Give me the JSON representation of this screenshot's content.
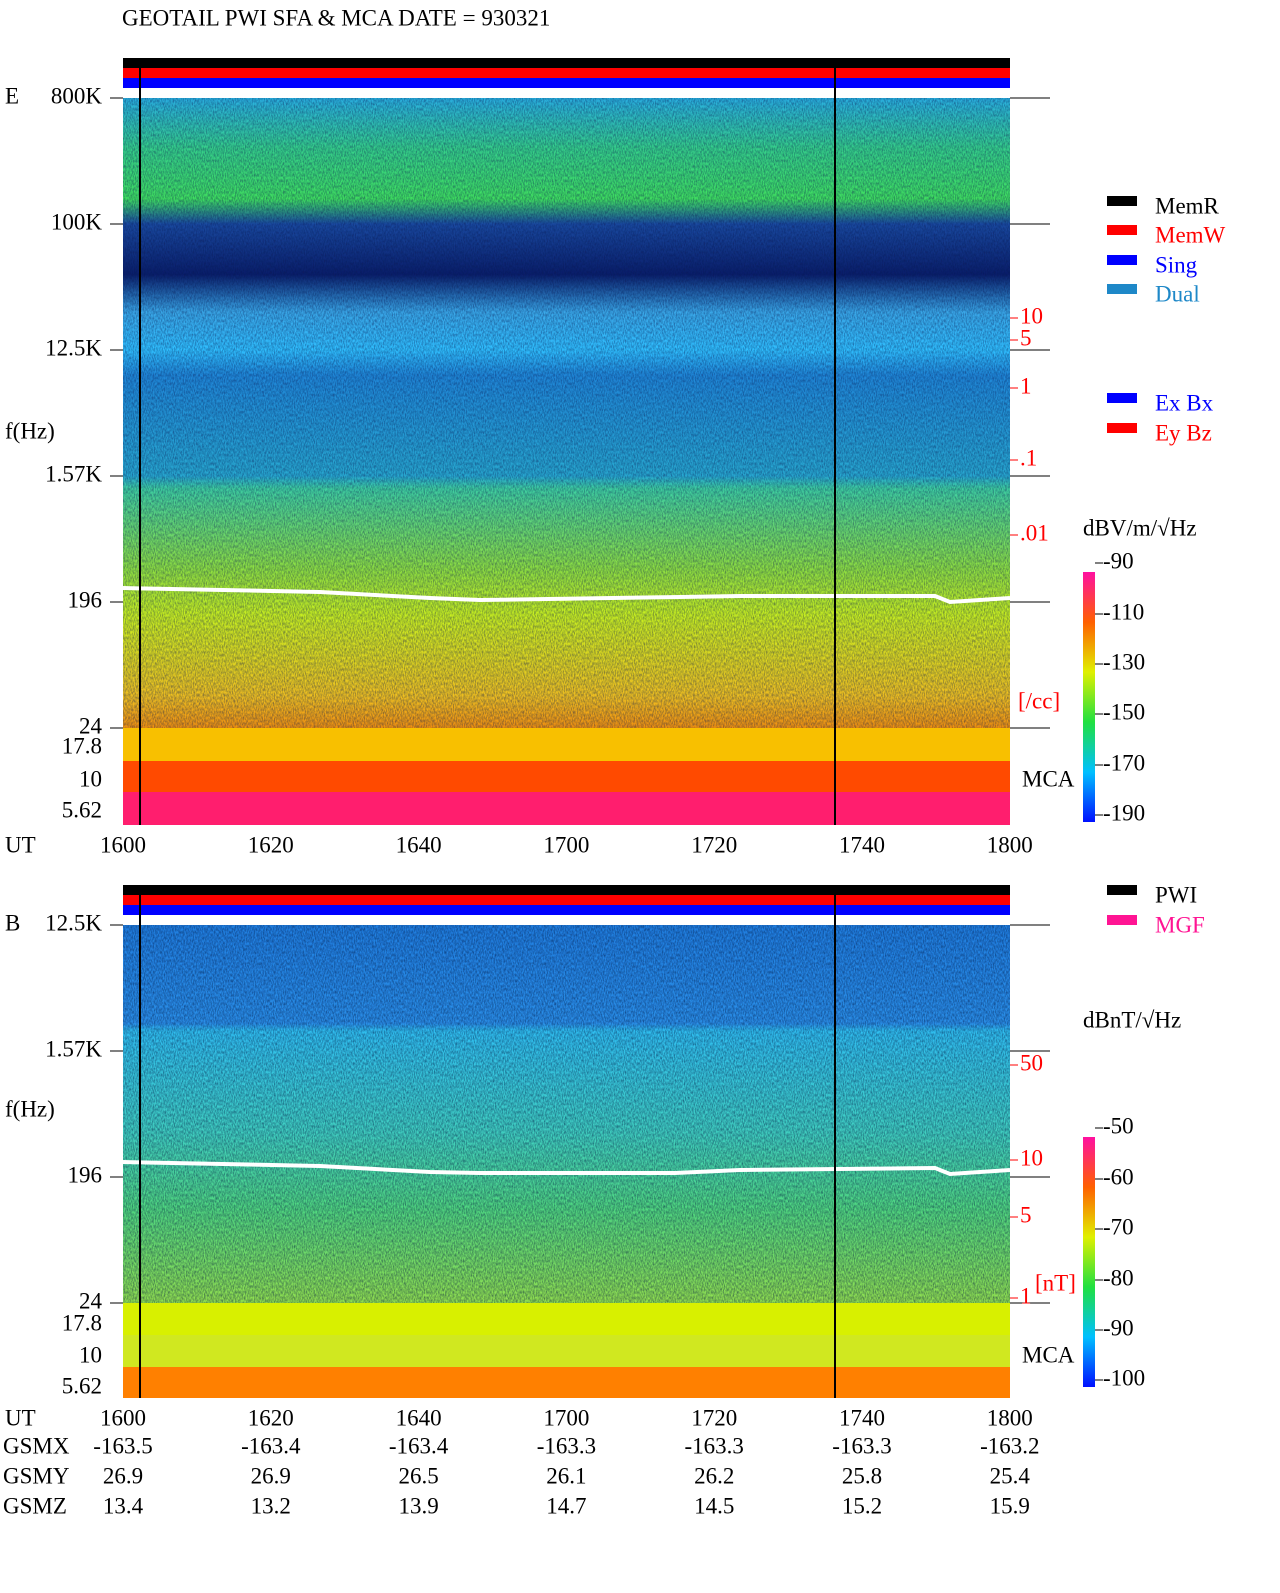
{
  "title": "GEOTAIL  PWI SFA & MCA   DATE = 930321",
  "panels": [
    {
      "component": "E",
      "ylabel": "f(Hz)",
      "yticks": [
        "800K",
        "100K",
        "12.5K",
        "1.57K",
        "196",
        "24",
        "17.8",
        "10",
        "5.62"
      ],
      "xlabel": "UT",
      "xticks": [
        "1600",
        "1620",
        "1640",
        "1700",
        "1720",
        "1740",
        "1800"
      ],
      "density_ticks": [
        "10",
        "5",
        "1",
        ".1",
        ".01"
      ],
      "density_unit": "[/cc]",
      "mca": "MCA",
      "colorbar_unit": "dBV/m/√Hz",
      "colorbar_ticks": [
        "-90",
        "-110",
        "-130",
        "-150",
        "-170",
        "-190"
      ],
      "legend": [
        {
          "label": "MemR",
          "color": "#000000"
        },
        {
          "label": "MemW",
          "color": "#ff0000"
        },
        {
          "label": "Sing",
          "color": "#0000ff"
        },
        {
          "label": "Dual",
          "color": "#1e88c8"
        },
        {
          "label": "Ex Bx",
          "color": "#0000ff"
        },
        {
          "label": "Ey Bz",
          "color": "#ff0000"
        }
      ]
    },
    {
      "component": "B",
      "ylabel": "f(Hz)",
      "yticks": [
        "12.5K",
        "1.57K",
        "196",
        "24",
        "17.8",
        "10",
        "5.62"
      ],
      "xlabel": "UT",
      "xticks": [
        "1600",
        "1620",
        "1640",
        "1700",
        "1720",
        "1740",
        "1800"
      ],
      "density_ticks": [
        "50",
        "10",
        "5",
        "1"
      ],
      "density_unit": "[nT]",
      "mca": "MCA",
      "colorbar_unit": "dBnT/√Hz",
      "colorbar_ticks": [
        "-50",
        "-60",
        "-70",
        "-80",
        "-90",
        "-100"
      ],
      "legend": [
        {
          "label": "PWI",
          "color": "#000000"
        },
        {
          "label": "MGF",
          "color": "#ff1493"
        }
      ]
    }
  ],
  "orbit": [
    {
      "name": "GSMX",
      "values": [
        "-163.5",
        "-163.4",
        "-163.4",
        "-163.3",
        "-163.3",
        "-163.3",
        "-163.2"
      ]
    },
    {
      "name": "GSMY",
      "values": [
        "26.9",
        "26.9",
        "26.5",
        "26.1",
        "26.2",
        "25.8",
        "25.4"
      ]
    },
    {
      "name": "GSMZ",
      "values": [
        "13.4",
        "13.2",
        "13.9",
        "14.7",
        "14.5",
        "15.2",
        "15.9"
      ]
    }
  ]
}
